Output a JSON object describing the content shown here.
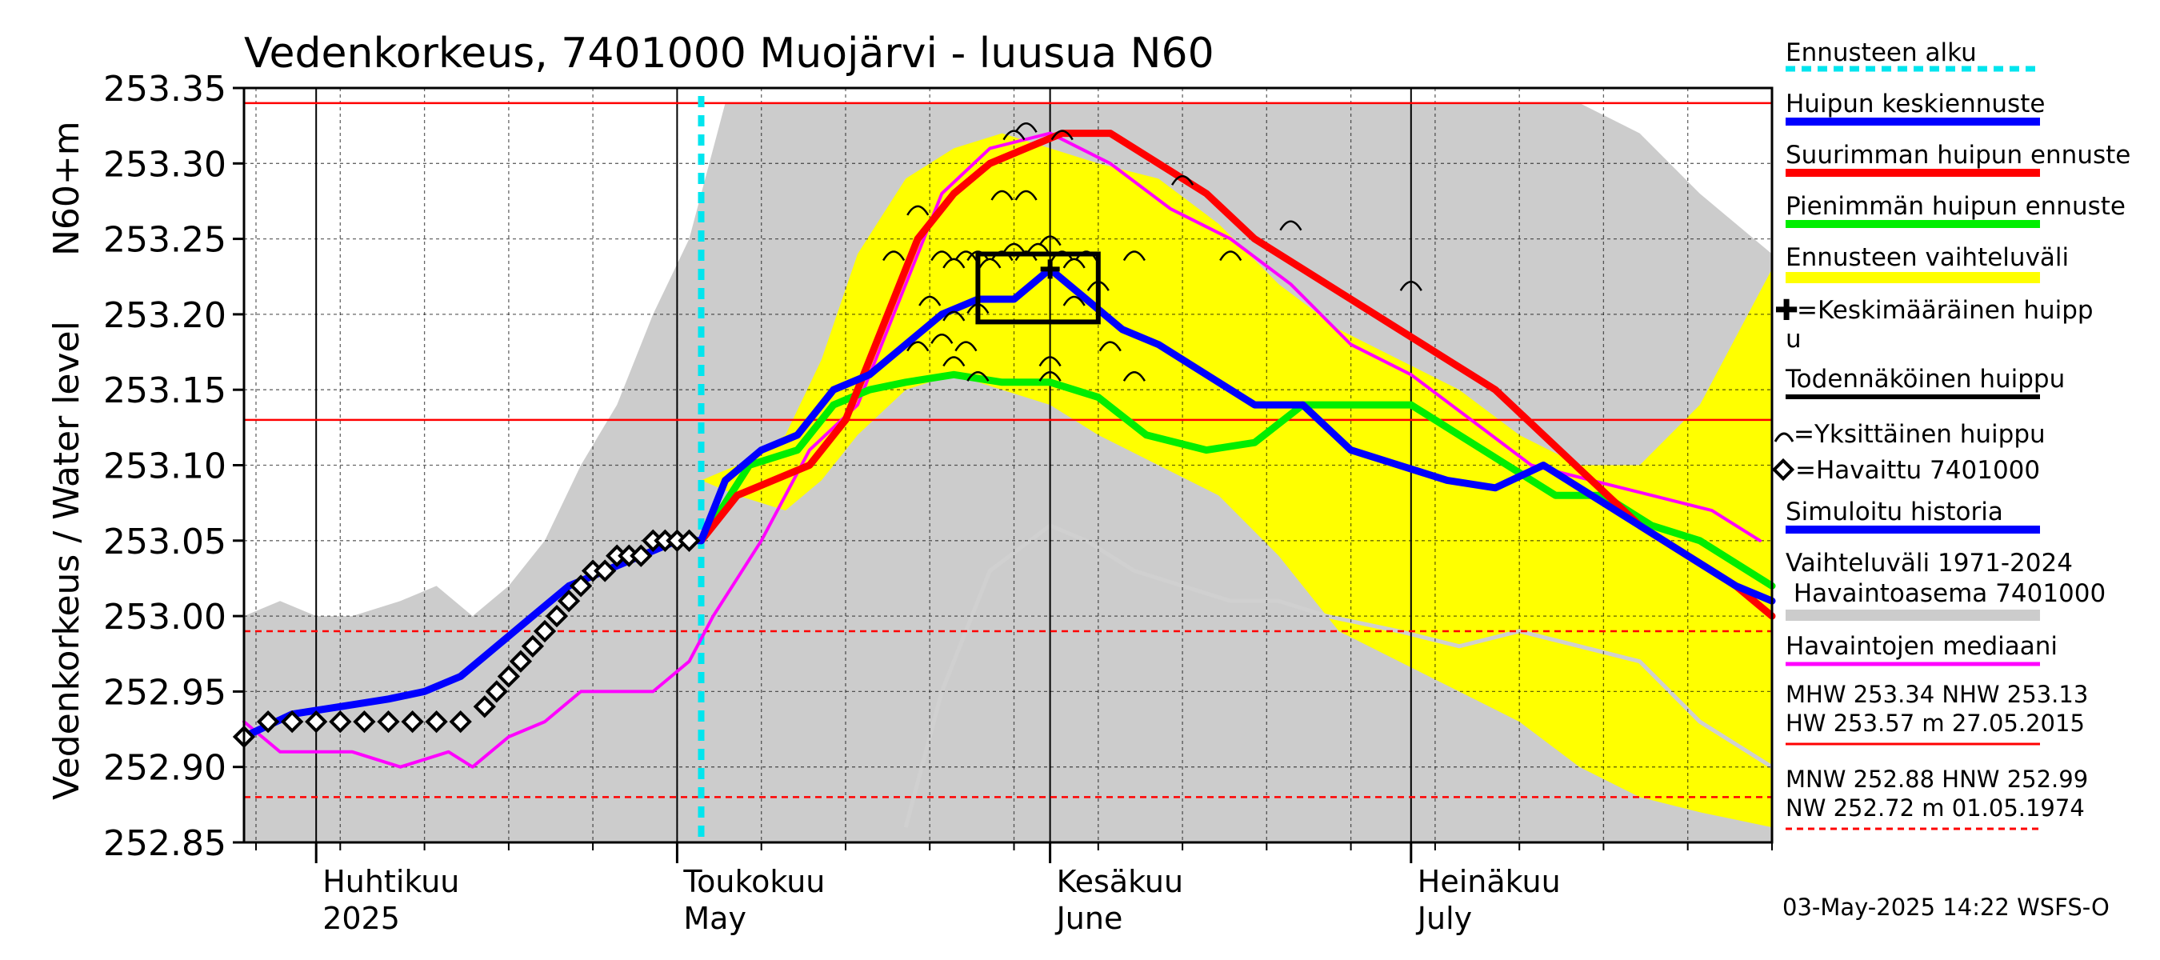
{
  "chart_data": {
    "type": "line",
    "title": "Vedenkorkeus, 7401000 Muojärvi - luusua N60",
    "ylabel": "Vedenkorkeus / Water level",
    "ylabel_unit": "N60+m",
    "ylim": [
      252.85,
      253.35
    ],
    "y_ticks": [
      "253.35",
      "253.30",
      "253.25",
      "253.20",
      "253.15",
      "253.10",
      "253.05",
      "253.00",
      "252.95",
      "252.90",
      "252.85"
    ],
    "x_range": [
      "2025-03-26",
      "2025-07-31"
    ],
    "month_labels": [
      {
        "date": "2025-04-01",
        "fi": "Huhtikuu",
        "en": "2025"
      },
      {
        "date": "2025-05-01",
        "fi": "Toukokuu",
        "en": "May"
      },
      {
        "date": "2025-06-01",
        "fi": "Kesäkuu",
        "en": "June"
      },
      {
        "date": "2025-07-01",
        "fi": "Heinäkuu",
        "en": "July"
      }
    ],
    "grid": true,
    "legend_position": "right",
    "forecast_start": "2025-05-03",
    "reference_lines": [
      {
        "name": "MHW",
        "value": 253.34,
        "style": "solid"
      },
      {
        "name": "NHW",
        "value": 253.13,
        "style": "solid"
      },
      {
        "name": "HNW",
        "value": 252.99,
        "style": "dashed"
      },
      {
        "name": "MNW",
        "value": 252.88,
        "style": "dashed"
      }
    ],
    "colors": {
      "history_band": "#cccccc",
      "forecast_band": "#ffff00",
      "median_forecast": "#0000ff",
      "max_forecast": "#ff0000",
      "min_forecast": "#00ee00",
      "observed_median": "#ff00ff",
      "forecast_start": "#00e5ee",
      "reference_line": "#ff0000",
      "history_lower": "#d0d0d0"
    },
    "history_band": {
      "x": [
        "2025-03-26",
        "2025-03-29",
        "2025-04-01",
        "2025-04-04",
        "2025-04-08",
        "2025-04-11",
        "2025-04-14",
        "2025-04-17",
        "2025-04-20",
        "2025-04-23",
        "2025-04-26",
        "2025-04-29",
        "2025-05-02",
        "2025-05-05",
        "2025-05-09",
        "2025-05-12",
        "2025-05-15",
        "2025-05-20",
        "2025-05-25",
        "2025-05-30",
        "2025-06-05",
        "2025-06-10",
        "2025-06-15",
        "2025-06-20",
        "2025-06-25",
        "2025-06-30",
        "2025-07-05",
        "2025-07-10",
        "2025-07-15",
        "2025-07-20",
        "2025-07-25",
        "2025-07-31"
      ],
      "upper": [
        253.0,
        253.01,
        253.0,
        253.0,
        253.01,
        253.02,
        253.0,
        253.02,
        253.05,
        253.1,
        253.14,
        253.2,
        253.25,
        253.34,
        253.34,
        253.34,
        253.34,
        253.34,
        253.34,
        253.34,
        253.34,
        253.34,
        253.34,
        253.34,
        253.34,
        253.34,
        253.34,
        253.34,
        253.34,
        253.32,
        253.28,
        253.24
      ],
      "lower": [
        252.85,
        252.85,
        252.85,
        252.85,
        252.85,
        252.85,
        252.85,
        252.85,
        252.85,
        252.85,
        252.85,
        252.85,
        252.85,
        252.85,
        252.85,
        252.85,
        252.85,
        252.85,
        252.85,
        252.85,
        252.85,
        252.85,
        252.85,
        252.85,
        252.85,
        252.85,
        252.85,
        252.85,
        252.85,
        252.85,
        252.85,
        252.85
      ]
    },
    "history_lower_line": {
      "x": [
        "2025-05-20",
        "2025-05-23",
        "2025-05-27",
        "2025-06-01",
        "2025-06-04",
        "2025-06-08",
        "2025-06-12",
        "2025-06-16",
        "2025-06-20",
        "2025-06-24",
        "2025-06-30",
        "2025-07-05",
        "2025-07-10",
        "2025-07-15",
        "2025-07-20",
        "2025-07-25",
        "2025-07-31"
      ],
      "values": [
        252.86,
        252.95,
        253.03,
        253.06,
        253.05,
        253.03,
        253.02,
        253.01,
        253.01,
        253.0,
        252.99,
        252.98,
        252.99,
        252.98,
        252.97,
        252.93,
        252.9
      ]
    },
    "forecast_band": {
      "x": [
        "2025-05-03",
        "2025-05-06",
        "2025-05-10",
        "2025-05-13",
        "2025-05-16",
        "2025-05-20",
        "2025-05-24",
        "2025-05-28",
        "2025-06-01",
        "2025-06-05",
        "2025-06-10",
        "2025-06-15",
        "2025-06-20",
        "2025-06-25",
        "2025-06-30",
        "2025-07-05",
        "2025-07-10",
        "2025-07-15",
        "2025-07-20",
        "2025-07-25",
        "2025-07-31"
      ],
      "upper": [
        253.09,
        253.1,
        253.12,
        253.17,
        253.24,
        253.29,
        253.31,
        253.32,
        253.31,
        253.3,
        253.29,
        253.26,
        253.22,
        253.19,
        253.17,
        253.15,
        253.12,
        253.1,
        253.1,
        253.14,
        253.23
      ],
      "lower": [
        253.09,
        253.08,
        253.07,
        253.09,
        253.12,
        253.15,
        253.16,
        253.15,
        253.14,
        253.12,
        253.1,
        253.08,
        253.04,
        252.99,
        252.97,
        252.95,
        252.93,
        252.9,
        252.88,
        252.87,
        252.86
      ]
    },
    "series": [
      {
        "name": "Huipun keskiennuste",
        "x": [
          "2025-03-26",
          "2025-03-30",
          "2025-04-03",
          "2025-04-07",
          "2025-04-10",
          "2025-04-13",
          "2025-04-16",
          "2025-04-19",
          "2025-04-22",
          "2025-04-25",
          "2025-04-28",
          "2025-05-01",
          "2025-05-03",
          "2025-05-05",
          "2025-05-08",
          "2025-05-11",
          "2025-05-14",
          "2025-05-17",
          "2025-05-20",
          "2025-05-23",
          "2025-05-26",
          "2025-05-29",
          "2025-06-01",
          "2025-06-04",
          "2025-06-07",
          "2025-06-10",
          "2025-06-14",
          "2025-06-18",
          "2025-06-22",
          "2025-06-26",
          "2025-06-30",
          "2025-07-04",
          "2025-07-08",
          "2025-07-12",
          "2025-07-16",
          "2025-07-20",
          "2025-07-24",
          "2025-07-28",
          "2025-07-31"
        ],
        "values": [
          252.92,
          252.935,
          252.94,
          252.945,
          252.95,
          252.96,
          252.98,
          253.0,
          253.02,
          253.03,
          253.04,
          253.05,
          253.05,
          253.09,
          253.11,
          253.12,
          253.15,
          253.16,
          253.18,
          253.2,
          253.21,
          253.21,
          253.23,
          253.21,
          253.19,
          253.18,
          253.16,
          253.14,
          253.14,
          253.11,
          253.1,
          253.09,
          253.085,
          253.1,
          253.08,
          253.06,
          253.04,
          253.02,
          253.01
        ]
      },
      {
        "name": "Suurimman huipun ennuste",
        "x": [
          "2025-05-03",
          "2025-05-06",
          "2025-05-09",
          "2025-05-12",
          "2025-05-15",
          "2025-05-18",
          "2025-05-21",
          "2025-05-24",
          "2025-05-27",
          "2025-05-30",
          "2025-06-02",
          "2025-06-06",
          "2025-06-10",
          "2025-06-14",
          "2025-06-18",
          "2025-06-22",
          "2025-06-26",
          "2025-06-30",
          "2025-07-04",
          "2025-07-08",
          "2025-07-12",
          "2025-07-16",
          "2025-07-20",
          "2025-07-24",
          "2025-07-28",
          "2025-07-31"
        ],
        "values": [
          253.05,
          253.08,
          253.09,
          253.1,
          253.13,
          253.19,
          253.25,
          253.28,
          253.3,
          253.31,
          253.32,
          253.32,
          253.3,
          253.28,
          253.25,
          253.23,
          253.21,
          253.19,
          253.17,
          253.15,
          253.12,
          253.09,
          253.06,
          253.04,
          253.02,
          253.0
        ]
      },
      {
        "name": "Pienimmän huipun ennuste",
        "x": [
          "2025-05-03",
          "2025-05-07",
          "2025-05-11",
          "2025-05-14",
          "2025-05-17",
          "2025-05-20",
          "2025-05-24",
          "2025-05-28",
          "2025-06-01",
          "2025-06-05",
          "2025-06-09",
          "2025-06-14",
          "2025-06-18",
          "2025-06-22",
          "2025-06-26",
          "2025-07-01",
          "2025-07-05",
          "2025-07-09",
          "2025-07-13",
          "2025-07-17",
          "2025-07-21",
          "2025-07-25",
          "2025-07-31"
        ],
        "values": [
          253.05,
          253.1,
          253.11,
          253.14,
          253.15,
          253.155,
          253.16,
          253.155,
          253.155,
          253.145,
          253.12,
          253.11,
          253.115,
          253.14,
          253.14,
          253.14,
          253.12,
          253.1,
          253.08,
          253.08,
          253.06,
          253.05,
          253.02
        ]
      },
      {
        "name": "Havaintojen mediaani",
        "x": [
          "2025-03-26",
          "2025-03-29",
          "2025-04-04",
          "2025-04-08",
          "2025-04-12",
          "2025-04-14",
          "2025-04-17",
          "2025-04-20",
          "2025-04-23",
          "2025-04-26",
          "2025-04-29",
          "2025-05-02",
          "2025-05-04",
          "2025-05-08",
          "2025-05-12",
          "2025-05-16",
          "2025-05-19",
          "2025-05-23",
          "2025-05-27",
          "2025-06-01",
          "2025-06-06",
          "2025-06-11",
          "2025-06-16",
          "2025-06-21",
          "2025-06-26",
          "2025-07-01",
          "2025-07-06",
          "2025-07-11",
          "2025-07-16",
          "2025-07-21",
          "2025-07-26",
          "2025-07-30"
        ],
        "values": [
          252.93,
          252.91,
          252.91,
          252.9,
          252.91,
          252.9,
          252.92,
          252.93,
          252.95,
          252.95,
          252.95,
          252.97,
          253.0,
          253.05,
          253.11,
          253.14,
          253.2,
          253.28,
          253.31,
          253.32,
          253.3,
          253.27,
          253.25,
          253.22,
          253.18,
          253.16,
          253.13,
          253.1,
          253.09,
          253.08,
          253.07,
          253.05
        ]
      },
      {
        "name": "Havaittu 7401000",
        "x": [
          "2025-03-26",
          "2025-03-28",
          "2025-03-30",
          "2025-04-01",
          "2025-04-03",
          "2025-04-05",
          "2025-04-07",
          "2025-04-09",
          "2025-04-11",
          "2025-04-13",
          "2025-04-15",
          "2025-04-16",
          "2025-04-17",
          "2025-04-18",
          "2025-04-19",
          "2025-04-20",
          "2025-04-21",
          "2025-04-22",
          "2025-04-23",
          "2025-04-24",
          "2025-04-25",
          "2025-04-26",
          "2025-04-27",
          "2025-04-28",
          "2025-04-29",
          "2025-04-30",
          "2025-05-01",
          "2025-05-02"
        ],
        "values": [
          252.92,
          252.93,
          252.93,
          252.93,
          252.93,
          252.93,
          252.93,
          252.93,
          252.93,
          252.93,
          252.94,
          252.95,
          252.96,
          252.97,
          252.98,
          252.99,
          253.0,
          253.01,
          253.02,
          253.03,
          253.03,
          253.04,
          253.04,
          253.04,
          253.05,
          253.05,
          253.05,
          253.05
        ]
      }
    ],
    "mean_peak_box": {
      "x0": "2025-05-26",
      "x1": "2025-06-05",
      "y0": 253.195,
      "y1": 253.24
    },
    "mean_peak_marker": {
      "date": "2025-06-01",
      "value": 253.23
    },
    "individual_peaks": [
      {
        "date": "2025-05-21",
        "value": 253.27
      },
      {
        "date": "2025-05-19",
        "value": 253.24
      },
      {
        "date": "2025-05-23",
        "value": 253.24
      },
      {
        "date": "2025-05-24",
        "value": 253.235
      },
      {
        "date": "2025-05-25",
        "value": 253.24
      },
      {
        "date": "2025-05-26",
        "value": 253.24
      },
      {
        "date": "2025-05-27",
        "value": 253.235
      },
      {
        "date": "2025-05-28",
        "value": 253.24
      },
      {
        "date": "2025-05-29",
        "value": 253.245
      },
      {
        "date": "2025-05-30",
        "value": 253.24
      },
      {
        "date": "2025-05-31",
        "value": 253.245
      },
      {
        "date": "2025-06-01",
        "value": 253.25
      },
      {
        "date": "2025-06-02",
        "value": 253.24
      },
      {
        "date": "2025-06-03",
        "value": 253.235
      },
      {
        "date": "2025-05-24",
        "value": 253.2
      },
      {
        "date": "2025-05-26",
        "value": 253.205
      },
      {
        "date": "2025-05-22",
        "value": 253.21
      },
      {
        "date": "2025-05-21",
        "value": 253.18
      },
      {
        "date": "2025-05-23",
        "value": 253.185
      },
      {
        "date": "2025-05-25",
        "value": 253.18
      },
      {
        "date": "2025-05-24",
        "value": 253.17
      },
      {
        "date": "2025-05-26",
        "value": 253.16
      },
      {
        "date": "2025-06-01",
        "value": 253.17
      },
      {
        "date": "2025-06-01",
        "value": 253.16
      },
      {
        "date": "2025-06-06",
        "value": 253.18
      },
      {
        "date": "2025-06-08",
        "value": 253.16
      },
      {
        "date": "2025-06-03",
        "value": 253.21
      },
      {
        "date": "2025-06-05",
        "value": 253.22
      },
      {
        "date": "2025-06-04",
        "value": 253.24
      },
      {
        "date": "2025-05-28",
        "value": 253.28
      },
      {
        "date": "2025-05-30",
        "value": 253.28
      },
      {
        "date": "2025-05-29",
        "value": 253.32
      },
      {
        "date": "2025-05-30",
        "value": 253.325
      },
      {
        "date": "2025-06-02",
        "value": 253.32
      },
      {
        "date": "2025-06-08",
        "value": 253.24
      },
      {
        "date": "2025-06-12",
        "value": 253.29
      },
      {
        "date": "2025-06-16",
        "value": 253.24
      },
      {
        "date": "2025-06-21",
        "value": 253.26
      },
      {
        "date": "2025-07-01",
        "value": 253.22
      }
    ]
  },
  "legend": {
    "forecast_start": "Ennusteen alku",
    "median_forecast": "Huipun keskiennuste",
    "max_forecast": "Suurimman huipun ennuste",
    "min_forecast": "Pienimmän huipun ennuste",
    "forecast_range": "Ennusteen vaihteluväli",
    "mean_peak_1": "=Keskimääräinen huipp",
    "mean_peak_2": "u",
    "likely_peak": "Todennäköinen huippu",
    "individual_peak": "=Yksittäinen huippu",
    "observed": "=Havaittu 7401000",
    "simulated": "Simuloitu historia",
    "history_range_1": "Vaihteluväli 1971-2024",
    "history_range_2": " Havaintoasema 7401000",
    "observed_median": "Havaintojen mediaani",
    "stats_high_1": "MHW 253.34 NHW 253.13",
    "stats_high_2": "HW 253.57 m 27.05.2015",
    "stats_low_1": "MNW 252.88 HNW 252.99",
    "stats_low_2": "NW 252.72 m 01.05.1974"
  },
  "footer": "03-May-2025 14:22 WSFS-O"
}
